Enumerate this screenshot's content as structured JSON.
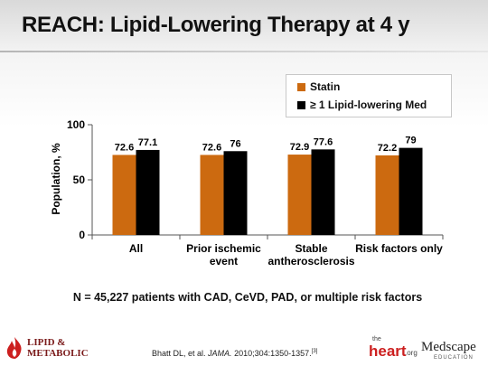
{
  "title": "REACH: Lipid-Lowering Therapy at 4 y",
  "note": "N = 45,227 patients with CAD, CeVD, PAD, or multiple risk factors",
  "citation": {
    "text_before": "Bhatt DL, et al. ",
    "journal": "JAMA.",
    "text_after": " 2010;304:1350-1357.",
    "ref": "[3]"
  },
  "logos": {
    "left_line1": "LIPID &",
    "left_line2": "METABOLIC",
    "heart_small": "the",
    "heart_main": "heart",
    "heart_suffix": ".org",
    "medscape_main": "Medscape",
    "medscape_sub": "EDUCATION"
  },
  "colors": {
    "statin": "#cc6a10",
    "lipid_med": "#000000",
    "axis": "#555555",
    "brand_red": "#cc1f1f"
  },
  "chart_data": {
    "type": "bar",
    "categories": [
      "All",
      "Prior ischemic event",
      "Stable antherosclerosis",
      "Risk factors only"
    ],
    "category_lines": [
      [
        "All"
      ],
      [
        "Prior ischemic",
        "event"
      ],
      [
        "Stable",
        "antherosclerosis"
      ],
      [
        "Risk factors only"
      ]
    ],
    "series": [
      {
        "name": "Statin",
        "values": [
          72.6,
          72.6,
          72.9,
          72.2
        ],
        "labels": [
          "72.6",
          "72.6",
          "72.9",
          "72.2"
        ]
      },
      {
        "name": "≥ 1 Lipid-lowering Med",
        "values": [
          77.1,
          76,
          77.6,
          79
        ],
        "labels": [
          "77.1",
          "76",
          "77.6",
          "79"
        ]
      }
    ],
    "ylabel": "Population, %",
    "ylim": [
      0,
      100
    ],
    "yticks": [
      0,
      50,
      100
    ],
    "grid": false,
    "legend_position": "top-right"
  }
}
